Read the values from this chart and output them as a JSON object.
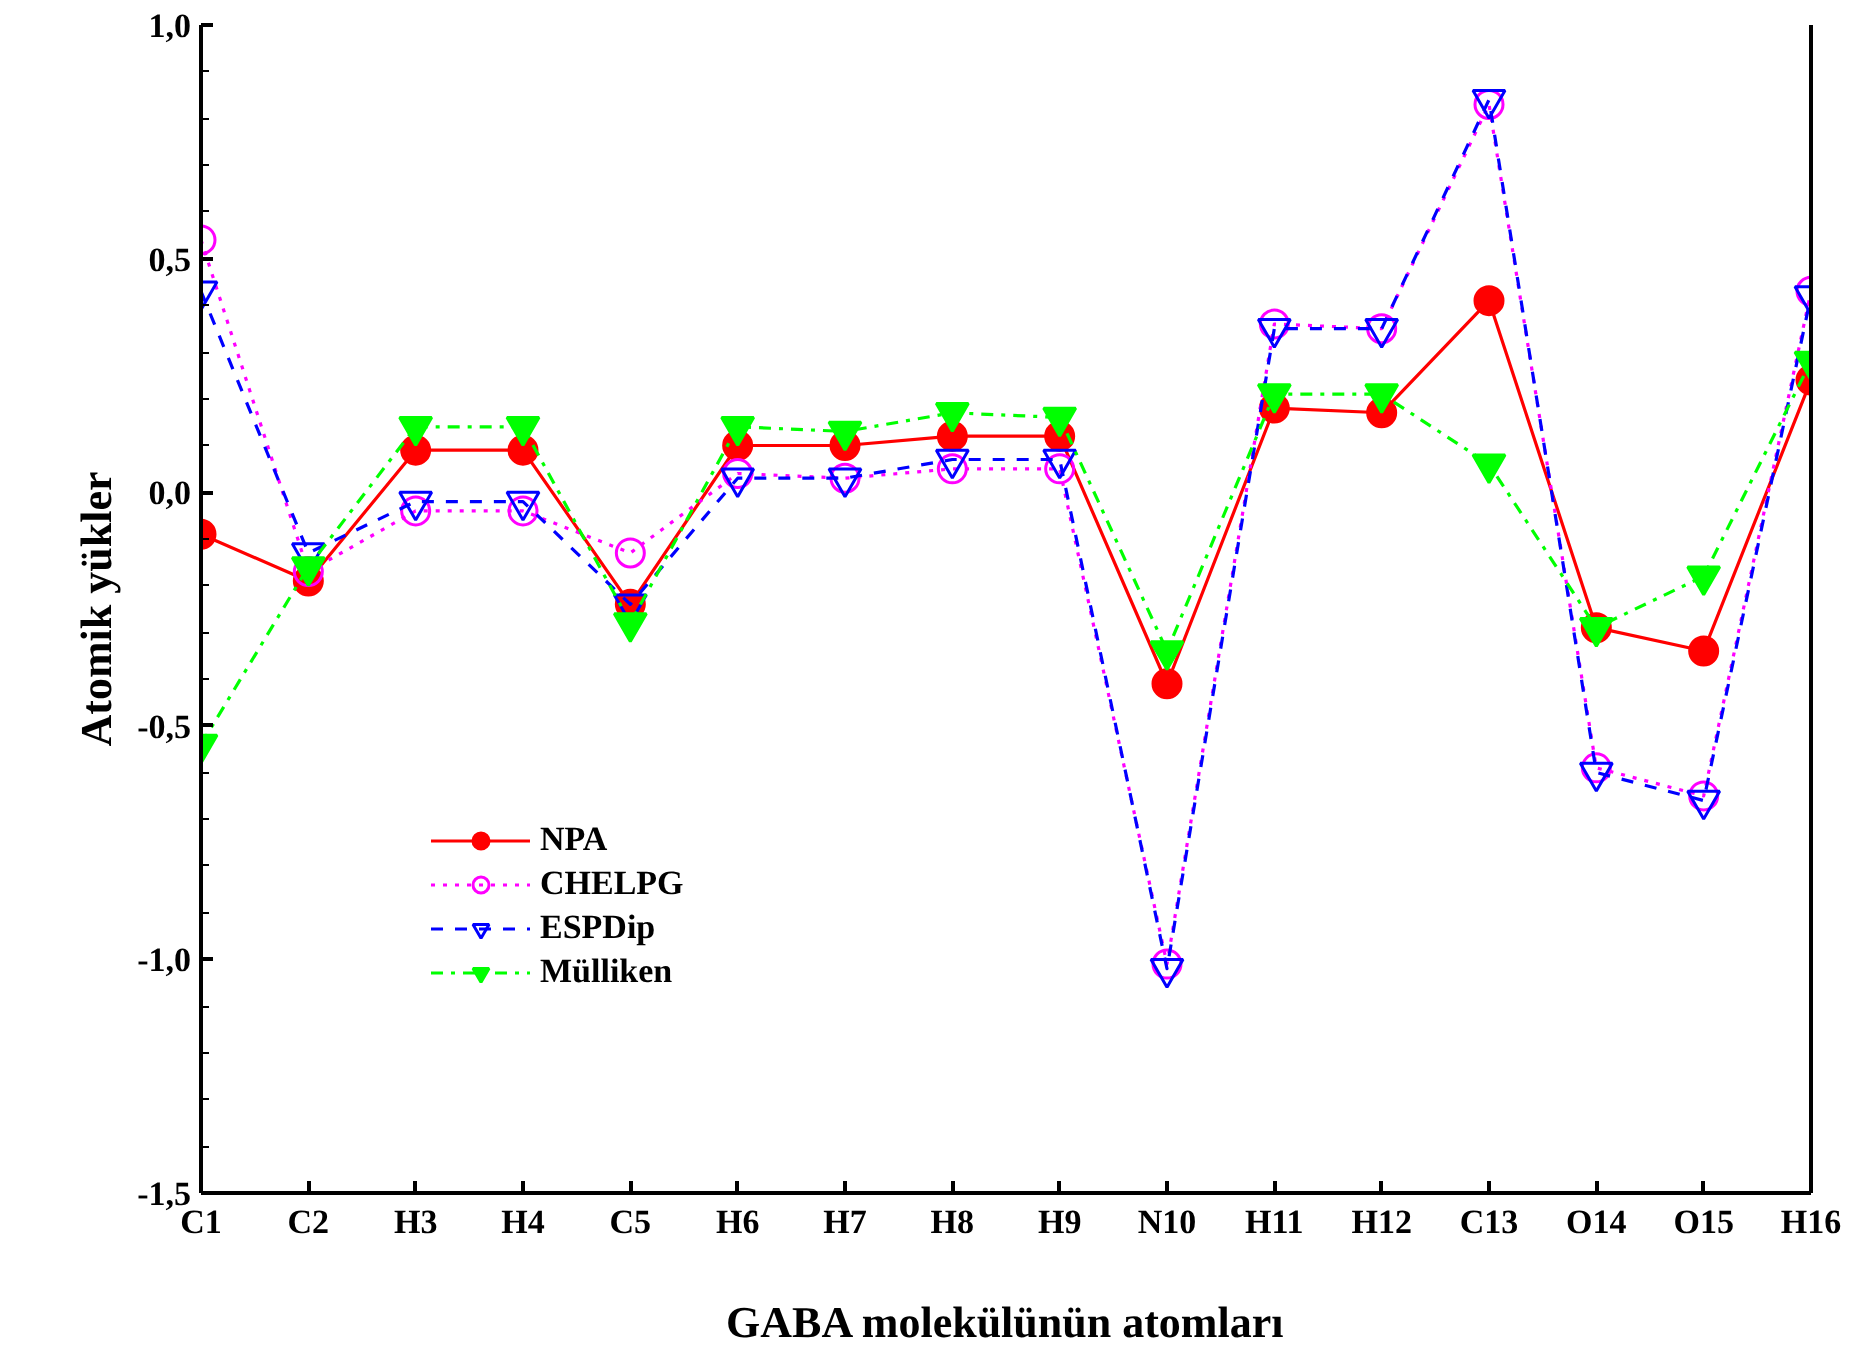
{
  "chart_data": {
    "type": "line",
    "xlabel": "GABA molekülünün atomları",
    "ylabel": "Atomik yükler",
    "categories": [
      "C1",
      "C2",
      "H3",
      "H4",
      "C5",
      "H6",
      "H7",
      "H8",
      "H9",
      "N10",
      "H11",
      "H12",
      "C13",
      "O14",
      "O15",
      "H16"
    ],
    "series": [
      {
        "name": "NPA",
        "color": "#ff0000",
        "line_style": "solid",
        "marker": "circle",
        "values": [
          -0.09,
          -0.19,
          0.09,
          0.09,
          -0.24,
          0.1,
          0.1,
          0.12,
          0.12,
          -0.41,
          0.18,
          0.17,
          0.41,
          -0.29,
          -0.34,
          0.24
        ]
      },
      {
        "name": "CHELPG",
        "color": "#ff00ff",
        "line_style": "dotted",
        "marker": "circle_open",
        "values": [
          0.54,
          -0.17,
          -0.04,
          -0.04,
          -0.13,
          0.04,
          0.03,
          0.05,
          0.05,
          -1.01,
          0.36,
          0.35,
          0.83,
          -0.59,
          -0.65,
          0.43
        ]
      },
      {
        "name": "ESPDip",
        "color": "#0000ff",
        "line_style": "dashed",
        "marker": "triangle_down_open",
        "values": [
          0.43,
          -0.13,
          -0.02,
          -0.02,
          -0.24,
          0.03,
          0.03,
          0.07,
          0.07,
          -1.02,
          0.35,
          0.35,
          0.84,
          -0.6,
          -0.66,
          0.42
        ]
      },
      {
        "name": "Mülliken",
        "color": "#00ff00",
        "line_style": "dashdot",
        "marker": "triangle_down",
        "values": [
          -0.54,
          -0.16,
          0.14,
          0.14,
          -0.28,
          0.14,
          0.13,
          0.17,
          0.16,
          -0.34,
          0.21,
          0.21,
          0.06,
          -0.29,
          -0.18,
          0.28
        ]
      }
    ],
    "ylim": [
      -1.5,
      1.0
    ],
    "yticks": [
      {
        "value": -1.5,
        "label": "-1,5"
      },
      {
        "value": -1.0,
        "label": "-1,0"
      },
      {
        "value": -0.5,
        "label": "-0,5"
      },
      {
        "value": 0.0,
        "label": "0,0"
      },
      {
        "value": 0.5,
        "label": "0,5"
      },
      {
        "value": 1.0,
        "label": "1,0"
      }
    ],
    "grid": false,
    "legend": "bottom left"
  }
}
